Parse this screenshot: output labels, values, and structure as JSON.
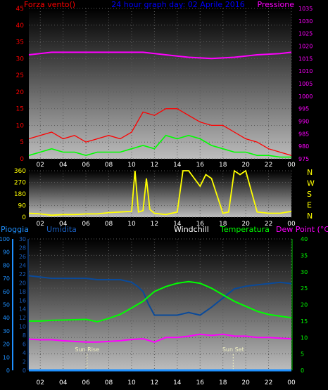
{
  "colors": {
    "wind": "#ff0000",
    "gust": "#00ff00",
    "pressure": "#ff00ff",
    "direction": "#ffff00",
    "rain": "#1e90ff",
    "humidity": "#0a4a9a",
    "windchill": "#ffffff",
    "temperature": "#00ff00",
    "dewpoint": "#ff00ff",
    "header_title": "#0000ff",
    "axis": "#ffffff"
  },
  "chart_data": [
    {
      "type": "line",
      "title": "24 hour graph day: 02 Aprile 2016",
      "left_label": "Forza vento()",
      "right_label": "Pressione",
      "x_tick_labels": [
        "02",
        "04",
        "06",
        "08",
        "10",
        "12",
        "14",
        "16",
        "18",
        "20",
        "22",
        "00"
      ],
      "x_range": [
        1,
        24
      ],
      "ylim_left": [
        0,
        45
      ],
      "y_left_ticks": [
        "0",
        "5",
        "10",
        "15",
        "20",
        "25",
        "30",
        "35",
        "40",
        "45"
      ],
      "ylim_right": [
        975,
        1035
      ],
      "y_right_ticks": [
        "975",
        "980",
        "985",
        "990",
        "995",
        "1000",
        "1005",
        "1010",
        "1015",
        "1020",
        "1025",
        "1030",
        "1035"
      ],
      "series": [
        {
          "name": "Forza vento()",
          "x": [
            1,
            2,
            3,
            4,
            5,
            6,
            7,
            8,
            9,
            10,
            11,
            12,
            13,
            14,
            15,
            16,
            17,
            18,
            19,
            20,
            21,
            22,
            23,
            24
          ],
          "values": [
            6,
            7,
            8,
            6,
            7,
            5,
            6,
            7,
            6,
            8,
            14,
            13,
            15,
            15,
            13,
            11,
            10,
            10,
            8,
            6,
            5,
            3,
            2,
            1
          ]
        },
        {
          "name": "",
          "x": [
            1,
            2,
            3,
            4,
            5,
            6,
            7,
            8,
            9,
            10,
            11,
            12,
            13,
            14,
            15,
            16,
            17,
            18,
            19,
            20,
            21,
            22,
            23,
            24
          ],
          "values": [
            1,
            2,
            3,
            2,
            2,
            1,
            2,
            2,
            2,
            3,
            4,
            3,
            7,
            6,
            7,
            6,
            4,
            3,
            2,
            2,
            1,
            1,
            0.5,
            0.5
          ]
        },
        {
          "name": "Pressione",
          "x": [
            1,
            3,
            5,
            7,
            9,
            11,
            13,
            15,
            17,
            19,
            21,
            23,
            24
          ],
          "values": [
            1016.5,
            1017.5,
            1017.5,
            1017.5,
            1017.5,
            1017.5,
            1016.5,
            1015.5,
            1015,
            1015.5,
            1016.5,
            1017,
            1017.5
          ]
        }
      ]
    },
    {
      "type": "scatter",
      "x_tick_labels": [
        "02",
        "04",
        "06",
        "08",
        "10",
        "12",
        "14",
        "16",
        "18",
        "20",
        "22",
        "00"
      ],
      "x_range": [
        1,
        24
      ],
      "ylim": [
        0,
        360
      ],
      "y_ticks": [
        "0",
        "90",
        "180",
        "270",
        "360"
      ],
      "right_labels": [
        "N",
        "W",
        "S",
        "E",
        "N"
      ],
      "series": [
        {
          "name": "",
          "x": [
            1,
            2,
            3,
            4,
            5,
            6,
            7,
            8,
            9,
            10,
            10.3,
            10.6,
            11,
            11.3,
            11.6,
            12,
            13,
            14,
            14.5,
            15,
            16,
            16.5,
            17,
            18,
            18.5,
            19,
            19.5,
            20,
            21,
            22,
            23,
            24
          ],
          "values": [
            30,
            25,
            15,
            20,
            20,
            25,
            25,
            35,
            40,
            45,
            360,
            40,
            50,
            300,
            60,
            30,
            20,
            40,
            360,
            360,
            240,
            330,
            300,
            30,
            40,
            360,
            330,
            360,
            40,
            30,
            30,
            45
          ]
        }
      ]
    },
    {
      "type": "line",
      "left_label": "Pioggia",
      "left2_label": "Umidita",
      "center_label": "Windchill",
      "right1_label": "Temperatura",
      "right2_label": "Dew Point (°C)",
      "x_tick_labels": [
        "02",
        "04",
        "06",
        "08",
        "10",
        "12",
        "14",
        "16",
        "18",
        "20",
        "22",
        "00"
      ],
      "x_range": [
        1,
        24
      ],
      "ylim_humidity": [
        0,
        100
      ],
      "y_humidity_ticks": [
        "0",
        "10",
        "20",
        "30",
        "40",
        "50",
        "60",
        "70",
        "80",
        "90",
        "100"
      ],
      "ylim_rain": [
        0,
        30
      ],
      "y_rain_ticks": [
        "0",
        "2",
        "4",
        "6",
        "8",
        "10",
        "12",
        "14",
        "16",
        "18",
        "20",
        "22",
        "24",
        "26",
        "28",
        "30"
      ],
      "ylim_temp": [
        0,
        40
      ],
      "y_temp_ticks": [
        "0",
        "5",
        "10",
        "15",
        "20",
        "25",
        "30",
        "35",
        "40"
      ],
      "annotations": [
        {
          "text": "Sun Rise",
          "x": 6.1
        },
        {
          "text": "Sun Set",
          "x": 18.9
        }
      ],
      "series": [
        {
          "name": "Umidita",
          "x": [
            1,
            2,
            3,
            4,
            5,
            6,
            7,
            8,
            9,
            10,
            10.5,
            11,
            11.5,
            12,
            13,
            14,
            15,
            16,
            17,
            18,
            19,
            20,
            21,
            22,
            23,
            24
          ],
          "values": [
            72,
            71,
            70,
            70,
            70,
            70,
            69,
            69,
            69,
            67,
            64,
            60,
            50,
            42,
            42,
            42,
            44,
            42,
            48,
            55,
            62,
            64,
            65,
            66,
            67,
            66
          ]
        },
        {
          "name": "Temperatura",
          "x": [
            1,
            2,
            3,
            4,
            5,
            6,
            7,
            8,
            9,
            10,
            11,
            12,
            13,
            14,
            15,
            16,
            17,
            18,
            19,
            20,
            21,
            22,
            23,
            24
          ],
          "values": [
            15,
            15,
            15.2,
            15.3,
            15.4,
            15.5,
            14.8,
            15.8,
            17,
            19,
            21,
            24,
            25.5,
            26.5,
            27,
            26.5,
            25,
            23,
            21,
            19.5,
            18,
            17,
            16.5,
            16
          ]
        },
        {
          "name": "Dew Point (°C)",
          "x": [
            1,
            2,
            3,
            4,
            5,
            6,
            7,
            8,
            9,
            10,
            11,
            12,
            13,
            14,
            15,
            16,
            17,
            18,
            19,
            20,
            21,
            22,
            23,
            24
          ],
          "values": [
            9.5,
            9.3,
            9.3,
            9,
            8.8,
            8.6,
            8.6,
            8.8,
            9,
            9.4,
            9.6,
            8.6,
            10,
            10,
            10.4,
            11,
            10.6,
            11,
            10.4,
            10.4,
            10,
            10,
            9.8,
            9.6
          ]
        },
        {
          "name": "Pioggia",
          "x": [
            1,
            24
          ],
          "values": [
            0,
            0
          ]
        }
      ]
    }
  ]
}
